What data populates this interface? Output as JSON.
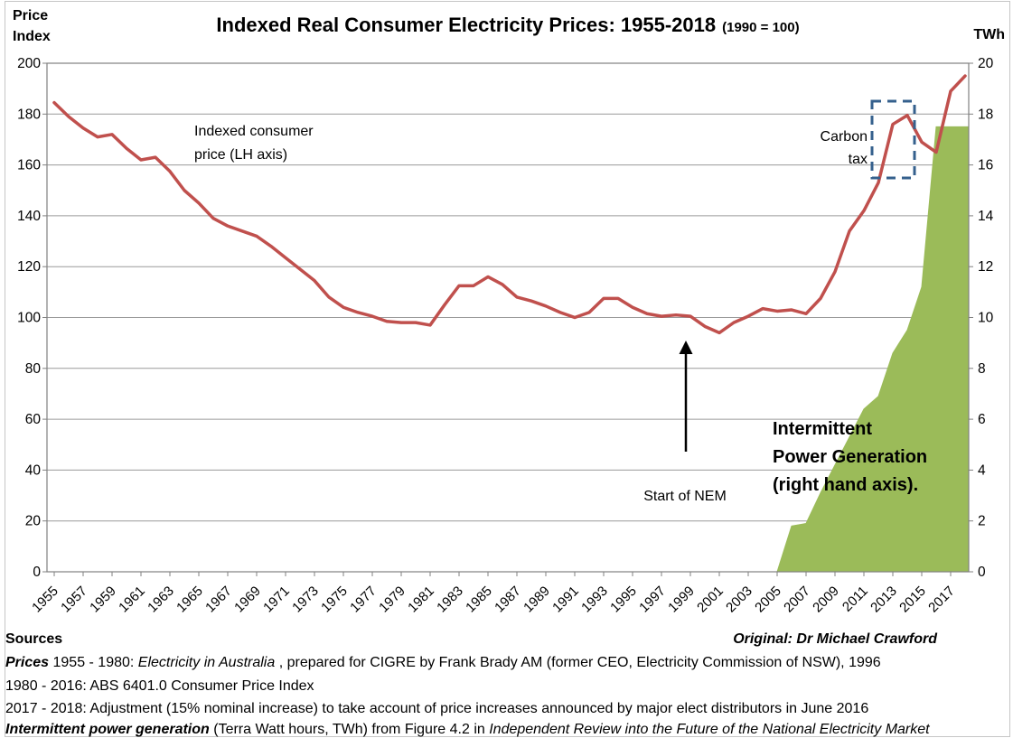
{
  "title": {
    "main": "Indexed Real Consumer Electricity Prices: 1955-2018",
    "suffix": "(1990 = 100)"
  },
  "axes": {
    "left_corner_label": [
      "Price",
      "Index"
    ],
    "right_corner_label": "TWh",
    "left_ticks": [
      0,
      20,
      40,
      60,
      80,
      100,
      120,
      140,
      160,
      180,
      200
    ],
    "right_ticks": [
      0,
      2,
      4,
      6,
      8,
      10,
      12,
      14,
      16,
      18,
      20
    ],
    "x_tick_years": [
      1955,
      1957,
      1959,
      1961,
      1963,
      1965,
      1967,
      1969,
      1971,
      1973,
      1975,
      1977,
      1979,
      1981,
      1983,
      1985,
      1987,
      1989,
      1991,
      1993,
      1995,
      1997,
      1999,
      2001,
      2003,
      2005,
      2007,
      2009,
      2011,
      2013,
      2015,
      2017
    ]
  },
  "annotations": {
    "price_label": [
      "Indexed consumer",
      "price (LH axis)"
    ],
    "carbon_tax": [
      "Carbon",
      "tax"
    ],
    "nem": "Start of NEM",
    "intermittent": [
      "Intermittent",
      "Power Generation",
      "(right hand axis)."
    ]
  },
  "colors": {
    "price_line": "#C0504D",
    "generation_area": "#9BBB59",
    "carbon_tax_box": "#35608D",
    "gridline": "#9A9A9A",
    "axis_border": "#808080",
    "frame": "#C6C6C6",
    "arrow": "#000000",
    "text": "#000000"
  },
  "chart_data": {
    "type": "line",
    "title": "Indexed Real Consumer Electricity Prices: 1955-2018 (1990 = 100)",
    "x_range": [
      1955,
      2018
    ],
    "left_axis": {
      "label": "Price Index",
      "range": [
        0,
        200
      ],
      "tick_step": 20
    },
    "right_axis": {
      "label": "TWh",
      "range": [
        0,
        20
      ],
      "tick_step": 2
    },
    "grid": true,
    "legend": "none",
    "series": [
      {
        "name": "Indexed consumer price (LH axis)",
        "type": "line",
        "axis": "left",
        "color": "#C0504D",
        "x": [
          1955,
          1956,
          1957,
          1958,
          1959,
          1960,
          1961,
          1962,
          1963,
          1964,
          1965,
          1966,
          1967,
          1968,
          1969,
          1970,
          1971,
          1972,
          1973,
          1974,
          1975,
          1976,
          1977,
          1978,
          1979,
          1980,
          1981,
          1982,
          1983,
          1984,
          1985,
          1986,
          1987,
          1988,
          1989,
          1990,
          1991,
          1992,
          1993,
          1994,
          1995,
          1996,
          1997,
          1998,
          1999,
          2000,
          2001,
          2002,
          2003,
          2004,
          2005,
          2006,
          2007,
          2008,
          2009,
          2010,
          2011,
          2012,
          2013,
          2014,
          2015,
          2016,
          2017,
          2018
        ],
        "values": [
          184.5,
          179,
          174.5,
          171,
          172,
          166.5,
          162,
          163,
          157.5,
          150,
          145,
          139,
          136,
          134,
          132,
          128,
          123.5,
          119,
          114.5,
          108,
          104,
          102,
          100.5,
          98.5,
          98,
          98,
          97,
          105,
          112.5,
          112.5,
          116,
          113,
          108,
          106.5,
          104.5,
          102,
          100,
          102,
          107.5,
          107.5,
          104,
          101.5,
          100.5,
          101,
          100.5,
          96.5,
          94,
          98,
          100.5,
          103.5,
          102.5,
          103,
          101.5,
          107.5,
          118,
          134,
          142,
          153,
          176,
          179.5,
          169,
          165,
          189,
          195
        ]
      },
      {
        "name": "Intermittent Power Generation (right hand axis)",
        "type": "area",
        "axis": "right",
        "color": "#9BBB59",
        "extend_right": true,
        "x": [
          2005,
          2006,
          2007,
          2008,
          2009,
          2010,
          2011,
          2012,
          2013,
          2014,
          2015,
          2016,
          2017,
          2018
        ],
        "values": [
          0,
          1.8,
          1.9,
          3.1,
          4.2,
          5.3,
          6.4,
          6.9,
          8.6,
          9.5,
          11.2,
          17.5,
          17.5,
          17.5
        ]
      }
    ]
  },
  "footer": {
    "sources_label": "Sources",
    "original_credit": "Original:  Dr Michael Crawford",
    "lines": [
      {
        "segments": [
          {
            "text": "Prices",
            "bold": true,
            "italic": true
          },
          {
            "text": " 1955 - 1980: "
          },
          {
            "text": "Electricity in Australia",
            "italic": true
          },
          {
            "text": " , prepared for CIGRE by Frank Brady AM (former CEO, Electricity Commission of NSW), 1996"
          }
        ]
      },
      {
        "segments": [
          {
            "text": "1980 - 2016: ABS 6401.0 Consumer Price Index"
          }
        ]
      },
      {
        "segments": [
          {
            "text": "2017 - 2018: Adjustment (15% nominal increase) to take account of price increases announced by major elect distributors in June 2016"
          }
        ]
      },
      {
        "segments": [
          {
            "text": "Intermittent power generation",
            "bold": true,
            "italic": true
          },
          {
            "text": "  (Terra Watt hours, TWh) from Figure 4.2 in "
          },
          {
            "text": "Independent Review into the Future of the National Electricity Market",
            "italic": true
          }
        ]
      }
    ]
  }
}
